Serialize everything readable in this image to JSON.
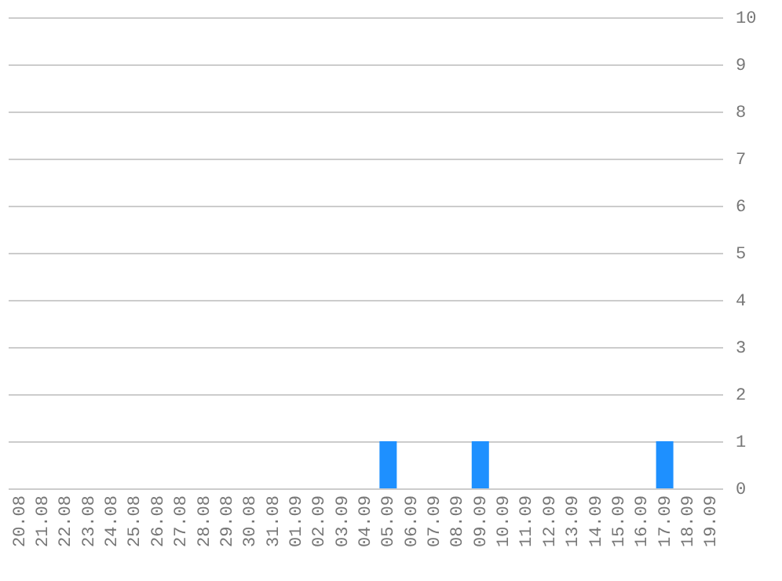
{
  "chart_data": {
    "type": "bar",
    "categories": [
      "20.08",
      "21.08",
      "22.08",
      "23.08",
      "24.08",
      "25.08",
      "26.08",
      "27.08",
      "28.08",
      "29.08",
      "30.08",
      "31.08",
      "01.09",
      "02.09",
      "03.09",
      "04.09",
      "05.09",
      "06.09",
      "07.09",
      "08.09",
      "09.09",
      "10.09",
      "11.09",
      "12.09",
      "13.09",
      "14.09",
      "15.09",
      "16.09",
      "17.09",
      "18.09",
      "19.09"
    ],
    "values": [
      0,
      0,
      0,
      0,
      0,
      0,
      0,
      0,
      0,
      0,
      0,
      0,
      0,
      0,
      0,
      0,
      1,
      0,
      0,
      0,
      1,
      0,
      0,
      0,
      0,
      0,
      0,
      0,
      1,
      0,
      0
    ],
    "color": "#1e90ff",
    "ylim": [
      0,
      10
    ],
    "yticks": [
      0,
      1,
      2,
      3,
      4,
      5,
      6,
      7,
      8,
      9,
      10
    ],
    "grid": "y"
  }
}
